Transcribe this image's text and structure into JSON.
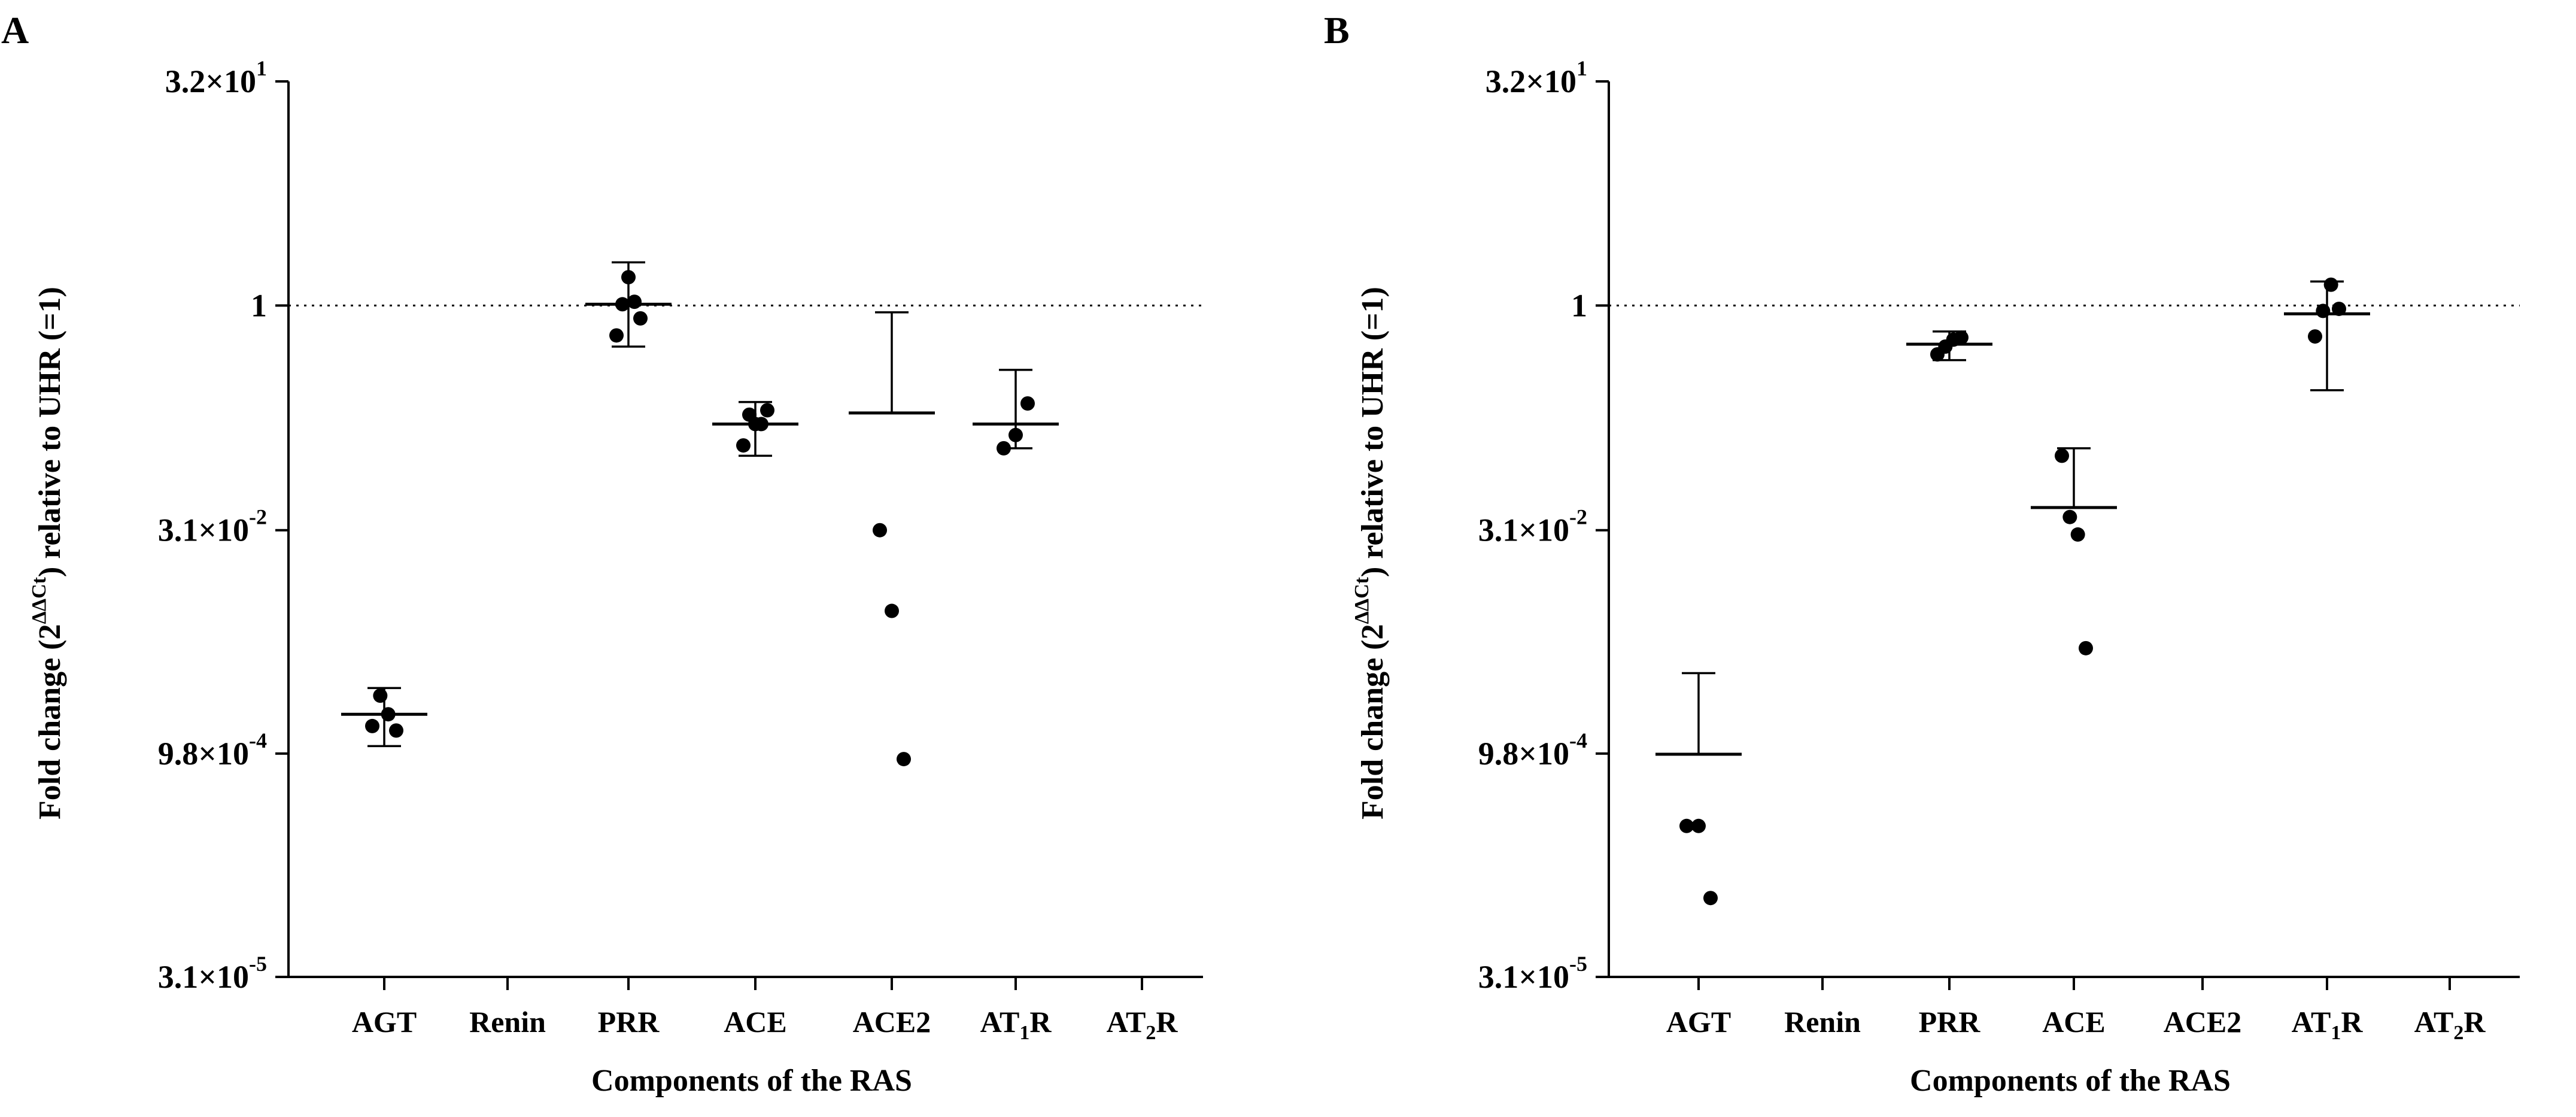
{
  "chart_data": [
    {
      "panel": "A",
      "type": "scatter",
      "ylabel": "Fold change (2^-ΔΔCt) relative to UHR (=1)",
      "ylabel_parts": {
        "pre": "Fold change (2",
        "sup": "ΔΔCt",
        "post": ") relative to UHR (=1)"
      },
      "xlabel": "Components of the RAS",
      "yscale": "log",
      "ylim": [
        3.1e-05,
        32
      ],
      "yticks": [
        {
          "value": 32,
          "mant": "3.2×10",
          "exp": "1"
        },
        {
          "value": 1,
          "mant": "1",
          "exp": ""
        },
        {
          "value": 0.031,
          "mant": "3.1×10",
          "exp": "-2"
        },
        {
          "value": 0.00098,
          "mant": "9.8×10",
          "exp": "-4"
        },
        {
          "value": 3.1e-05,
          "mant": "3.1×10",
          "exp": "-5"
        }
      ],
      "reference_line": 1,
      "categories": [
        {
          "name": "AGT",
          "sub": ""
        },
        {
          "name": "Renin",
          "sub": ""
        },
        {
          "name": "PRR",
          "sub": ""
        },
        {
          "name": "ACE",
          "sub": ""
        },
        {
          "name": "ACE2",
          "sub": ""
        },
        {
          "name": "AT",
          "sub": "1",
          "suffix": "R"
        },
        {
          "name": "AT",
          "sub": "2",
          "suffix": "R"
        }
      ],
      "groups": [
        {
          "category": "AGT",
          "mean": 0.0018,
          "err_low": 0.0011,
          "err_high": 0.0027,
          "points": [
            0.0015,
            0.0024,
            0.0018,
            0.0014
          ]
        },
        {
          "category": "PRR",
          "mean": 1.02,
          "err_low": 0.53,
          "err_high": 1.95,
          "points": [
            0.63,
            1.02,
            1.55,
            1.06,
            0.82
          ]
        },
        {
          "category": "ACE",
          "mean": 0.16,
          "err_low": 0.098,
          "err_high": 0.225,
          "points": [
            0.115,
            0.185,
            0.16,
            0.16,
            0.198
          ]
        },
        {
          "category": "ACE2",
          "mean": 0.19,
          "err_low": null,
          "err_high": 0.9,
          "points": [
            0.031,
            0.0089,
            0.0009
          ]
        },
        {
          "category": "AT1R",
          "mean": 0.16,
          "err_low": 0.11,
          "err_high": 0.37,
          "points": [
            0.11,
            0.135,
            0.22
          ]
        }
      ]
    },
    {
      "panel": "B",
      "type": "scatter",
      "ylabel": "Fold change (2^-ΔΔCt) relative to UHR (=1)",
      "ylabel_parts": {
        "pre": "Fold change (2",
        "sup": "ΔΔCt",
        "post": ") relative to UHR (=1)"
      },
      "xlabel": "Components of the RAS",
      "yscale": "log",
      "ylim": [
        3.1e-05,
        32
      ],
      "yticks": [
        {
          "value": 32,
          "mant": "3.2×10",
          "exp": "1"
        },
        {
          "value": 1,
          "mant": "1",
          "exp": ""
        },
        {
          "value": 0.031,
          "mant": "3.1×10",
          "exp": "-2"
        },
        {
          "value": 0.00098,
          "mant": "9.8×10",
          "exp": "-4"
        },
        {
          "value": 3.1e-05,
          "mant": "3.1×10",
          "exp": "-5"
        }
      ],
      "reference_line": 1,
      "categories": [
        {
          "name": "AGT",
          "sub": ""
        },
        {
          "name": "Renin",
          "sub": ""
        },
        {
          "name": "PRR",
          "sub": ""
        },
        {
          "name": "ACE",
          "sub": ""
        },
        {
          "name": "ACE2",
          "sub": ""
        },
        {
          "name": "AT",
          "sub": "1",
          "suffix": "R"
        },
        {
          "name": "AT",
          "sub": "2",
          "suffix": "R"
        }
      ],
      "groups": [
        {
          "category": "AGT",
          "mean": 0.00097,
          "err_low": null,
          "err_high": 0.0034,
          "points": [
            0.00032,
            0.00032,
            0.000105
          ]
        },
        {
          "category": "PRR",
          "mean": 0.55,
          "err_low": 0.43,
          "err_high": 0.67,
          "points": [
            0.47,
            0.53,
            0.59,
            0.61
          ]
        },
        {
          "category": "ACE",
          "mean": 0.044,
          "err_low": null,
          "err_high": 0.11,
          "points": [
            0.098,
            0.038,
            0.029,
            0.005
          ]
        },
        {
          "category": "AT1R",
          "mean": 0.88,
          "err_low": 0.27,
          "err_high": 1.45,
          "points": [
            0.62,
            0.92,
            1.38,
            0.95
          ]
        }
      ]
    }
  ]
}
